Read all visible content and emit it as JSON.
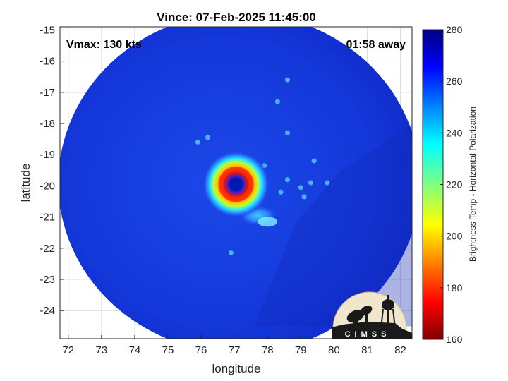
{
  "title": "Vince: 07-Feb-2025 11:45:00",
  "vmax_label": "Vmax: 130 kts",
  "time_away_label": "01:58 away",
  "axes": {
    "xlabel": "longitude",
    "ylabel": "latitude",
    "x_ticks": [
      "72",
      "73",
      "74",
      "75",
      "76",
      "77",
      "78",
      "79",
      "80",
      "81",
      "82"
    ],
    "y_ticks": [
      "-15",
      "-16",
      "-17",
      "-18",
      "-19",
      "-20",
      "-21",
      "-22",
      "-23",
      "-24"
    ],
    "xlim": [
      71.75,
      82.35
    ],
    "ylim": [
      -24.9,
      -14.9
    ],
    "grid": true
  },
  "colorbar": {
    "label": "Brightness Temp - Horizontal Polarization",
    "ticks": [
      "280",
      "260",
      "240",
      "220",
      "200",
      "180",
      "160"
    ],
    "range": [
      160,
      280
    ],
    "colormap": "jet"
  },
  "storm": {
    "name": "Vince",
    "center_lon": 77.05,
    "center_lat": -19.95,
    "swath_center_lon": 77.15,
    "swath_center_lat": -19.9,
    "swath_radius_deg": 5.45
  },
  "logo": {
    "text": "CIMSS"
  },
  "colors": {
    "background_tb": "#1430d8",
    "eye": "#0018b0",
    "ring_inner": "#e01010",
    "ring_mid": "#ff9a00",
    "ring_outer": "#ffe400"
  }
}
